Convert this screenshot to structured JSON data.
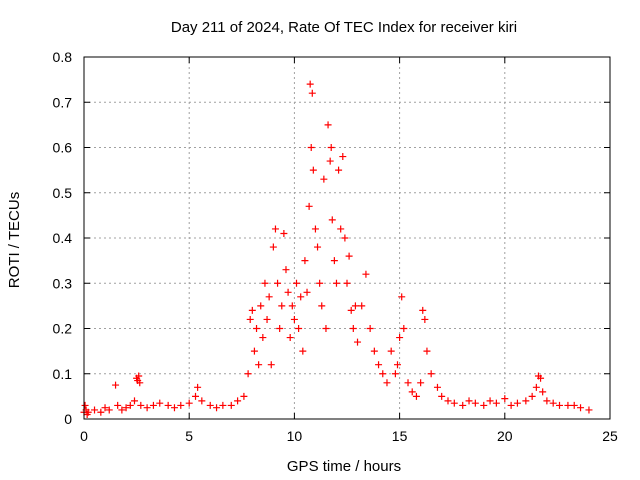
{
  "chart_data": {
    "type": "scatter",
    "title": "Day 211 of 2024, Rate Of TEC Index for receiver kiri",
    "xlabel": "GPS time / hours",
    "ylabel": "ROTI / TECUs",
    "xlim": [
      0,
      25
    ],
    "ylim": [
      0,
      0.8
    ],
    "x_ticks": [
      "0",
      "5",
      "10",
      "15",
      "20",
      "25"
    ],
    "y_ticks": [
      "0",
      "0.1",
      "0.2",
      "0.3",
      "0.4",
      "0.5",
      "0.6",
      "0.7",
      "0.8"
    ],
    "grid": true,
    "legend": "none",
    "marker": "+",
    "color": "#ff0000",
    "series": [
      {
        "x": [
          0.0,
          0.05,
          0.1,
          0.15,
          0.2,
          0.5,
          0.8,
          1.0,
          1.2,
          1.5,
          1.6,
          1.8,
          2.0,
          2.2,
          2.4,
          2.5,
          2.55,
          2.6,
          2.65,
          2.7,
          3.0,
          3.3,
          3.6,
          4.0,
          4.3,
          4.6,
          5.0,
          5.3,
          5.4,
          5.6,
          6.0,
          6.3,
          6.6,
          7.0,
          7.3,
          7.6,
          7.8,
          7.9,
          8.0,
          8.1,
          8.2,
          8.3,
          8.4,
          8.5,
          8.6,
          8.7,
          8.8,
          8.9,
          9.0,
          9.1,
          9.2,
          9.3,
          9.4,
          9.5,
          9.6,
          9.7,
          9.8,
          9.9,
          10.0,
          10.1,
          10.2,
          10.3,
          10.4,
          10.5,
          10.6,
          10.7,
          10.75,
          10.8,
          10.85,
          10.9,
          11.0,
          11.1,
          11.2,
          11.3,
          11.4,
          11.5,
          11.6,
          11.7,
          11.75,
          11.8,
          11.9,
          12.0,
          12.1,
          12.2,
          12.3,
          12.4,
          12.5,
          12.6,
          12.7,
          12.8,
          12.9,
          13.0,
          13.2,
          13.4,
          13.6,
          13.8,
          14.0,
          14.2,
          14.4,
          14.6,
          14.8,
          14.9,
          15.0,
          15.1,
          15.2,
          15.4,
          15.6,
          15.8,
          16.0,
          16.1,
          16.2,
          16.3,
          16.5,
          16.8,
          17.0,
          17.3,
          17.6,
          18.0,
          18.3,
          18.6,
          19.0,
          19.3,
          19.6,
          20.0,
          20.3,
          20.6,
          21.0,
          21.3,
          21.5,
          21.6,
          21.7,
          21.8,
          22.0,
          22.3,
          22.6,
          23.0,
          23.3,
          23.6,
          24.0
        ],
        "y": [
          0.015,
          0.03,
          0.02,
          0.01,
          0.015,
          0.02,
          0.015,
          0.025,
          0.02,
          0.075,
          0.03,
          0.02,
          0.025,
          0.03,
          0.04,
          0.09,
          0.085,
          0.095,
          0.08,
          0.03,
          0.025,
          0.03,
          0.035,
          0.03,
          0.025,
          0.03,
          0.035,
          0.05,
          0.07,
          0.04,
          0.03,
          0.025,
          0.03,
          0.03,
          0.04,
          0.05,
          0.1,
          0.22,
          0.24,
          0.15,
          0.2,
          0.12,
          0.25,
          0.18,
          0.3,
          0.22,
          0.27,
          0.12,
          0.38,
          0.42,
          0.3,
          0.2,
          0.25,
          0.41,
          0.33,
          0.28,
          0.18,
          0.25,
          0.22,
          0.3,
          0.2,
          0.27,
          0.15,
          0.35,
          0.28,
          0.47,
          0.74,
          0.6,
          0.72,
          0.55,
          0.42,
          0.38,
          0.3,
          0.25,
          0.53,
          0.2,
          0.65,
          0.57,
          0.6,
          0.44,
          0.35,
          0.3,
          0.55,
          0.42,
          0.58,
          0.4,
          0.3,
          0.36,
          0.24,
          0.2,
          0.25,
          0.17,
          0.25,
          0.32,
          0.2,
          0.15,
          0.12,
          0.1,
          0.08,
          0.15,
          0.1,
          0.12,
          0.18,
          0.27,
          0.2,
          0.08,
          0.06,
          0.05,
          0.08,
          0.24,
          0.22,
          0.15,
          0.1,
          0.07,
          0.05,
          0.04,
          0.035,
          0.03,
          0.04,
          0.035,
          0.03,
          0.04,
          0.035,
          0.045,
          0.03,
          0.035,
          0.04,
          0.05,
          0.07,
          0.095,
          0.09,
          0.06,
          0.04,
          0.035,
          0.03,
          0.03,
          0.03,
          0.025,
          0.02
        ]
      }
    ]
  }
}
